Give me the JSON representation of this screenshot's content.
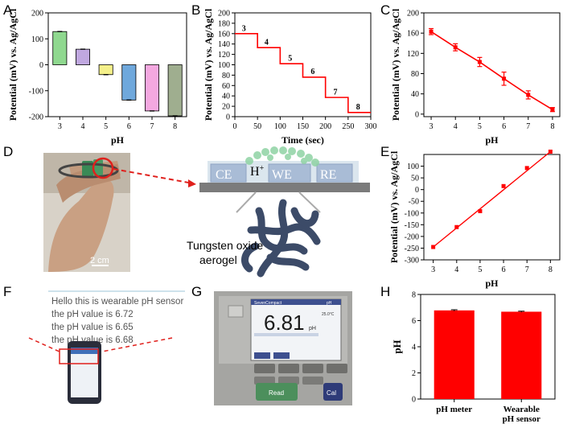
{
  "panel_labels": {
    "A": "A",
    "B": "B",
    "C": "C",
    "D": "D",
    "E": "E",
    "F": "F",
    "G": "G",
    "H": "H"
  },
  "diagram": {
    "electrodes": [
      "CE",
      "WE",
      "RE"
    ],
    "h_plus": "H",
    "h_plus_sup": "+",
    "material": "Tungsten oxide",
    "material2": "aerogel",
    "scale_bar": "2 cm"
  },
  "phone": {
    "lines": [
      "Hello this is wearable pH sensor",
      "the pH value is 6.72",
      "the pH value is 6.65",
      "the pH value is 6.68"
    ]
  },
  "meter": {
    "brand": "SevenCompact",
    "mode": "pH",
    "reading": "6.81",
    "unit": "pH",
    "temp": "25.0°C",
    "read_btn": "Read",
    "cal_btn": "Cal"
  },
  "chart_data": [
    {
      "panel": "A",
      "type": "bar",
      "categories": [
        "3",
        "4",
        "5",
        "6",
        "7",
        "8"
      ],
      "values": [
        128,
        60,
        -38,
        -136,
        -178,
        -197
      ],
      "colors": [
        "#8fd88f",
        "#c0a8e0",
        "#f4f08a",
        "#6fa8dc",
        "#f4a8e0",
        "#9fae8f"
      ],
      "xlabel": "pH",
      "ylabel": "Potential (mV) vs. Ag/AgCl",
      "ylim": [
        -200,
        200
      ],
      "yticks": [
        -200,
        -100,
        0,
        100,
        200
      ]
    },
    {
      "panel": "B",
      "type": "line",
      "x": [
        0,
        10,
        20,
        30,
        40,
        50,
        60,
        70,
        80,
        90,
        100,
        110,
        120,
        130,
        140,
        150,
        160,
        170,
        180,
        190,
        200,
        210,
        220,
        230,
        240,
        250,
        260,
        270,
        280,
        290,
        300
      ],
      "step_points": [
        [
          0,
          160
        ],
        [
          50,
          160
        ],
        [
          50,
          133
        ],
        [
          100,
          133
        ],
        [
          100,
          102
        ],
        [
          150,
          102
        ],
        [
          150,
          76
        ],
        [
          200,
          76
        ],
        [
          200,
          37
        ],
        [
          250,
          37
        ],
        [
          250,
          8
        ],
        [
          300,
          8
        ]
      ],
      "step_labels": [
        {
          "x": 20,
          "y": 165,
          "text": "3"
        },
        {
          "x": 70,
          "y": 139,
          "text": "4"
        },
        {
          "x": 122,
          "y": 108,
          "text": "5"
        },
        {
          "x": 172,
          "y": 82,
          "text": "6"
        },
        {
          "x": 222,
          "y": 43,
          "text": "7"
        },
        {
          "x": 272,
          "y": 14,
          "text": "8"
        }
      ],
      "xlabel": "Time (sec)",
      "ylabel": "Potential (mV) vs. Ag/AgCl",
      "xlim": [
        0,
        300
      ],
      "ylim": [
        0,
        200
      ],
      "xticks": [
        0,
        50,
        100,
        150,
        200,
        250,
        300
      ],
      "yticks": [
        0,
        20,
        40,
        60,
        80,
        100,
        120,
        140,
        160,
        180,
        200
      ]
    },
    {
      "panel": "C",
      "type": "line",
      "x": [
        3,
        4,
        5,
        6,
        7,
        8
      ],
      "values": [
        163,
        132,
        103,
        70,
        38,
        9
      ],
      "errors": [
        6,
        7,
        9,
        13,
        8,
        4
      ],
      "xlabel": "pH",
      "ylabel": "Potential (mV) vs. Ag/AgCl",
      "xlim": [
        2.7,
        8.3
      ],
      "ylim": [
        -5,
        200
      ],
      "xticks": [
        3,
        4,
        5,
        6,
        7,
        8
      ],
      "yticks": [
        0,
        40,
        80,
        120,
        160,
        200
      ]
    },
    {
      "panel": "E",
      "type": "scatter",
      "x": [
        3,
        4,
        5,
        6,
        7,
        8
      ],
      "values": [
        -245,
        -160,
        -92,
        15,
        92,
        162
      ],
      "fit": [
        [
          3,
          -245
        ],
        [
          8,
          162
        ]
      ],
      "xlabel": "pH",
      "ylabel": "Potential (mV) vs. Ag/AgCl",
      "xlim": [
        2.6,
        8.4
      ],
      "ylim": [
        -300,
        150
      ],
      "xticks": [
        3,
        4,
        5,
        6,
        7,
        8
      ],
      "yticks": [
        -300,
        -250,
        -200,
        -150,
        -100,
        -50,
        0,
        50,
        100
      ]
    },
    {
      "panel": "H",
      "type": "bar",
      "categories": [
        "pH meter",
        "Wearable pH sensor"
      ],
      "category_lines": [
        [
          "pH meter"
        ],
        [
          "Wearable",
          "pH sensor"
        ]
      ],
      "values": [
        6.78,
        6.68
      ],
      "errors": [
        0.05,
        0.04
      ],
      "color": "#ff0000",
      "ylabel": "pH",
      "ylim": [
        0,
        8
      ],
      "yticks": [
        0,
        2,
        4,
        6,
        8
      ]
    }
  ]
}
